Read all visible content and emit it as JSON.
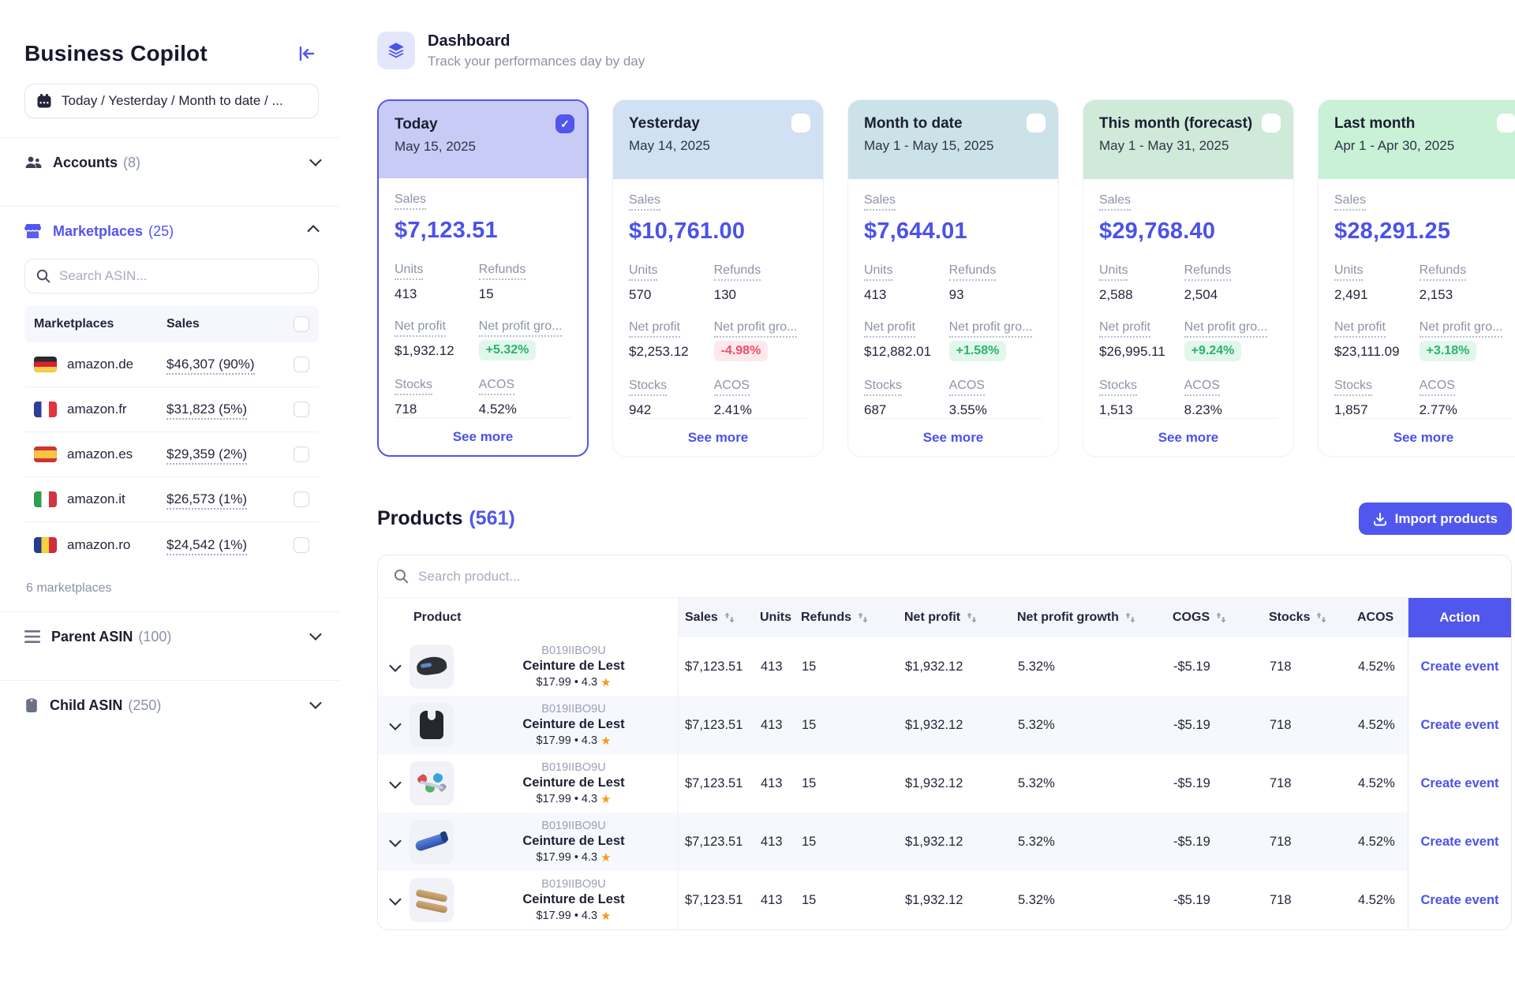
{
  "accent": "#5156ec",
  "sidebar": {
    "title": "Business Copilot",
    "date_filter": "Today / Yesterday / Month to date / ...",
    "accounts": {
      "label": "Accounts",
      "count": "(8)"
    },
    "marketplaces": {
      "label": "Marketplaces",
      "count": "(25)"
    },
    "search_placeholder": "Search ASIN...",
    "table_head": {
      "marketplaces": "Marketplaces",
      "sales": "Sales"
    },
    "rows": [
      {
        "flag": "de",
        "name": "amazon.de",
        "sales": "$46,307 (90%)"
      },
      {
        "flag": "fr",
        "name": "amazon.fr",
        "sales": "$31,823 (5%)"
      },
      {
        "flag": "es",
        "name": "amazon.es",
        "sales": "$29,359 (2%)"
      },
      {
        "flag": "it",
        "name": "amazon.it",
        "sales": "$26,573 (1%)"
      },
      {
        "flag": "ro",
        "name": "amazon.ro",
        "sales": "$24,542 (1%)"
      }
    ],
    "footer": "6 marketplaces",
    "parent_asin": {
      "label": "Parent ASIN",
      "count": "(100)"
    },
    "child_asin": {
      "label": "Child ASIN",
      "count": "(250)"
    }
  },
  "header": {
    "title": "Dashboard",
    "subtitle": "Track your performances day by day"
  },
  "card_labels": {
    "sales": "Sales",
    "units": "Units",
    "refunds": "Refunds",
    "net_profit": "Net profit",
    "growth": "Net profit gro...",
    "stocks": "Stocks",
    "acos": "ACOS",
    "see_more": "See more"
  },
  "cards": [
    {
      "title": "Today",
      "date": "May 15, 2025",
      "header_color": "#c7cbf5",
      "selected": true,
      "checked": true,
      "sales": "$7,123.51",
      "units": "413",
      "refunds": "15",
      "net_profit": "$1,932.12",
      "growth": "+5.32%",
      "growth_dir": "up",
      "stocks": "718",
      "acos": "4.52%"
    },
    {
      "title": "Yesterday",
      "date": "May 14, 2025",
      "header_color": "#cfe1f2",
      "selected": false,
      "checked": false,
      "sales": "$10,761.00",
      "units": "570",
      "refunds": "130",
      "net_profit": "$2,253.12",
      "growth": "-4.98%",
      "growth_dir": "down",
      "stocks": "942",
      "acos": "2.41%"
    },
    {
      "title": "Month to date",
      "date": "May 1 - May 15, 2025",
      "header_color": "#cbe3e8",
      "selected": false,
      "checked": false,
      "sales": "$7,644.01",
      "units": "413",
      "refunds": "93",
      "net_profit": "$12,882.01",
      "growth": "+1.58%",
      "growth_dir": "up",
      "stocks": "687",
      "acos": "3.55%"
    },
    {
      "title": "This month (forecast)",
      "date": "May 1 - May 31, 2025",
      "header_color": "#d0ead9",
      "selected": false,
      "checked": false,
      "sales": "$29,768.40",
      "units": "2,588",
      "refunds": "2,504",
      "net_profit": "$26,995.11",
      "growth": "+9.24%",
      "growth_dir": "up",
      "stocks": "1,513",
      "acos": "8.23%"
    },
    {
      "title": "Last month",
      "date": "Apr 1 - Apr 30, 2025",
      "header_color": "#c8f1d6",
      "selected": false,
      "checked": false,
      "sales": "$28,291.25",
      "units": "2,491",
      "refunds": "2,153",
      "net_profit": "$23,111.09",
      "growth": "+3.18%",
      "growth_dir": "up",
      "stocks": "1,857",
      "acos": "2.77%"
    }
  ],
  "products": {
    "title": "Products",
    "count": "(561)",
    "import_button": "Import products",
    "search_placeholder": "Search product...",
    "columns": [
      {
        "label": "Product",
        "sortable": false
      },
      {
        "label": "Sales",
        "sortable": true
      },
      {
        "label": "Units",
        "sortable": false
      },
      {
        "label": "Refunds",
        "sortable": true
      },
      {
        "label": "Net profit",
        "sortable": true
      },
      {
        "label": "Net profit growth",
        "sortable": true
      },
      {
        "label": "COGS",
        "sortable": true
      },
      {
        "label": "Stocks",
        "sortable": true
      },
      {
        "label": "ACOS",
        "sortable": false
      }
    ],
    "action_column": "Action",
    "action_label": "Create event",
    "rows": [
      {
        "asin": "B019IIBO9U",
        "name": "Ceinture de Lest",
        "price_line": "$17.99 • 4.3",
        "thumb": "belt",
        "sales": "$7,123.51",
        "units": "413",
        "refunds": "15",
        "net_profit": "$1,932.12",
        "growth": "5.32%",
        "cogs": "-$5.19",
        "stocks": "718",
        "acos": "4.52%"
      },
      {
        "asin": "B019IIBO9U",
        "name": "Ceinture de Lest",
        "price_line": "$17.99 • 4.3",
        "thumb": "vest",
        "sales": "$7,123.51",
        "units": "413",
        "refunds": "15",
        "net_profit": "$1,932.12",
        "growth": "5.32%",
        "cogs": "-$5.19",
        "stocks": "718",
        "acos": "4.52%"
      },
      {
        "asin": "B019IIBO9U",
        "name": "Ceinture de Lest",
        "price_line": "$17.99 • 4.3",
        "thumb": "bands",
        "sales": "$7,123.51",
        "units": "413",
        "refunds": "15",
        "net_profit": "$1,932.12",
        "growth": "5.32%",
        "cogs": "-$5.19",
        "stocks": "718",
        "acos": "4.52%"
      },
      {
        "asin": "B019IIBO9U",
        "name": "Ceinture de Lest",
        "price_line": "$17.99 • 4.3",
        "thumb": "tube",
        "sales": "$7,123.51",
        "units": "413",
        "refunds": "15",
        "net_profit": "$1,932.12",
        "growth": "5.32%",
        "cogs": "-$5.19",
        "stocks": "718",
        "acos": "4.52%"
      },
      {
        "asin": "B019IIBO9U",
        "name": "Ceinture de Lest",
        "price_line": "$17.99 • 4.3",
        "thumb": "bars",
        "sales": "$7,123.51",
        "units": "413",
        "refunds": "15",
        "net_profit": "$1,932.12",
        "growth": "5.32%",
        "cogs": "-$5.19",
        "stocks": "718",
        "acos": "4.52%"
      }
    ]
  }
}
